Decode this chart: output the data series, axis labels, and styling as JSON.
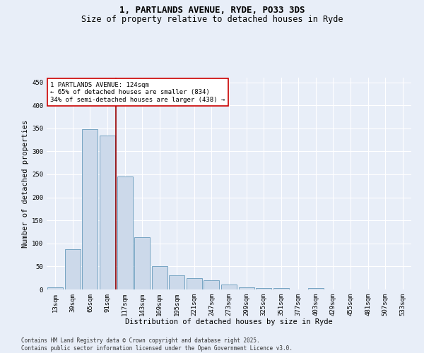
{
  "title_line1": "1, PARTLANDS AVENUE, RYDE, PO33 3DS",
  "title_line2": "Size of property relative to detached houses in Ryde",
  "xlabel": "Distribution of detached houses by size in Ryde",
  "ylabel": "Number of detached properties",
  "categories": [
    "13sqm",
    "39sqm",
    "65sqm",
    "91sqm",
    "117sqm",
    "143sqm",
    "169sqm",
    "195sqm",
    "221sqm",
    "247sqm",
    "273sqm",
    "299sqm",
    "325sqm",
    "351sqm",
    "377sqm",
    "403sqm",
    "429sqm",
    "455sqm",
    "481sqm",
    "507sqm",
    "533sqm"
  ],
  "values": [
    5,
    88,
    348,
    335,
    245,
    113,
    50,
    30,
    25,
    20,
    10,
    5,
    3,
    3,
    0,
    3,
    0,
    0,
    0,
    0,
    0
  ],
  "bar_color": "#ccd9ea",
  "bar_edge_color": "#6699bb",
  "background_color": "#e8eef8",
  "grid_color": "#ffffff",
  "vline_x": 3.5,
  "vline_color": "#990000",
  "annotation_text": "1 PARTLANDS AVENUE: 124sqm\n← 65% of detached houses are smaller (834)\n34% of semi-detached houses are larger (438) →",
  "annotation_box_color": "#ffffff",
  "annotation_box_edge_color": "#cc0000",
  "ylim": [
    0,
    460
  ],
  "yticks": [
    0,
    50,
    100,
    150,
    200,
    250,
    300,
    350,
    400,
    450
  ],
  "footer_line1": "Contains HM Land Registry data © Crown copyright and database right 2025.",
  "footer_line2": "Contains public sector information licensed under the Open Government Licence v3.0.",
  "title_fontsize": 9,
  "subtitle_fontsize": 8.5,
  "axis_label_fontsize": 7.5,
  "tick_fontsize": 6.5,
  "annotation_fontsize": 6.5,
  "footer_fontsize": 5.5
}
